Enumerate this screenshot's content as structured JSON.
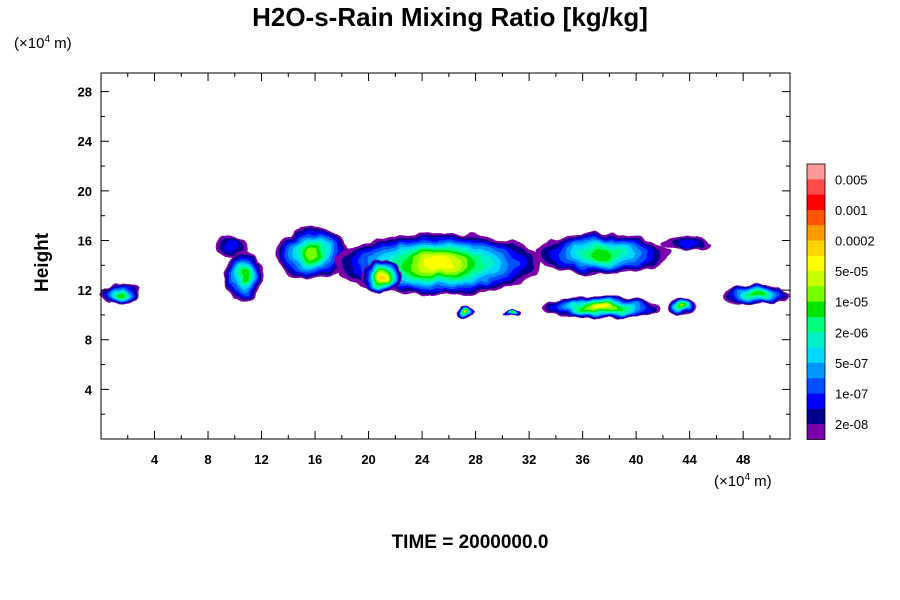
{
  "chart_data": {
    "type": "heatmap",
    "title": "H2O-s-Rain Mixing Ratio [kg/kg]",
    "ylabel": "Height",
    "x_unit_label": "(×10",
    "x_unit_exp": "4",
    "x_unit_tail": " m)",
    "y_unit_label": "(×10",
    "y_unit_exp": "4",
    "y_unit_tail": " m)",
    "footer": "TIME = 2000000.0",
    "xlim": [
      0,
      51.5
    ],
    "ylim": [
      0,
      29.5
    ],
    "xticks": [
      4,
      8,
      12,
      16,
      20,
      24,
      28,
      32,
      36,
      40,
      44,
      48
    ],
    "yticks": [
      4,
      8,
      12,
      16,
      20,
      24,
      28
    ],
    "colorbar_labels": [
      "0.005",
      "0.001",
      "0.0002",
      "5e-05",
      "1e-05",
      "2e-06",
      "5e-07",
      "1e-07",
      "2e-08"
    ],
    "colorbar_colors": [
      "#ff9a9a",
      "#ff4a4a",
      "#ff0000",
      "#ff5500",
      "#ff9900",
      "#ffd400",
      "#ffff00",
      "#c8ff00",
      "#78ff00",
      "#00e600",
      "#00ff7a",
      "#00f0c8",
      "#00d7ff",
      "#0096ff",
      "#0050ff",
      "#0000ff",
      "#00008c",
      "#7a00aa"
    ],
    "regions": [
      {
        "x": [
          0.0,
          3.0
        ],
        "y": [
          10.8,
          12.6
        ],
        "peak": 9
      },
      {
        "x": [
          8.5,
          11.0
        ],
        "y": [
          14.8,
          16.3
        ],
        "peak": 3
      },
      {
        "x": [
          9.2,
          12.2
        ],
        "y": [
          11.0,
          15.2
        ],
        "peak": 9
      },
      {
        "x": [
          13.0,
          18.5
        ],
        "y": [
          13.0,
          17.0
        ],
        "peak": 10
      },
      {
        "x": [
          17.5,
          33.0
        ],
        "y": [
          11.6,
          16.6
        ],
        "peak": 12
      },
      {
        "x": [
          19.5,
          22.5
        ],
        "y": [
          11.8,
          14.4
        ],
        "peak": 13
      },
      {
        "x": [
          32.5,
          42.5
        ],
        "y": [
          13.2,
          16.6
        ],
        "peak": 9
      },
      {
        "x": [
          42.0,
          45.8
        ],
        "y": [
          15.2,
          16.3
        ],
        "peak": 3
      },
      {
        "x": [
          26.5,
          27.8
        ],
        "y": [
          9.8,
          10.6
        ],
        "peak": 11
      },
      {
        "x": [
          30.0,
          31.5
        ],
        "y": [
          9.9,
          10.4
        ],
        "peak": 9
      },
      {
        "x": [
          33.0,
          41.8
        ],
        "y": [
          9.7,
          11.5
        ],
        "peak": 12
      },
      {
        "x": [
          42.5,
          44.5
        ],
        "y": [
          10.0,
          11.4
        ],
        "peak": 10
      },
      {
        "x": [
          46.5,
          51.5
        ],
        "y": [
          10.8,
          12.4
        ],
        "peak": 9
      }
    ]
  }
}
